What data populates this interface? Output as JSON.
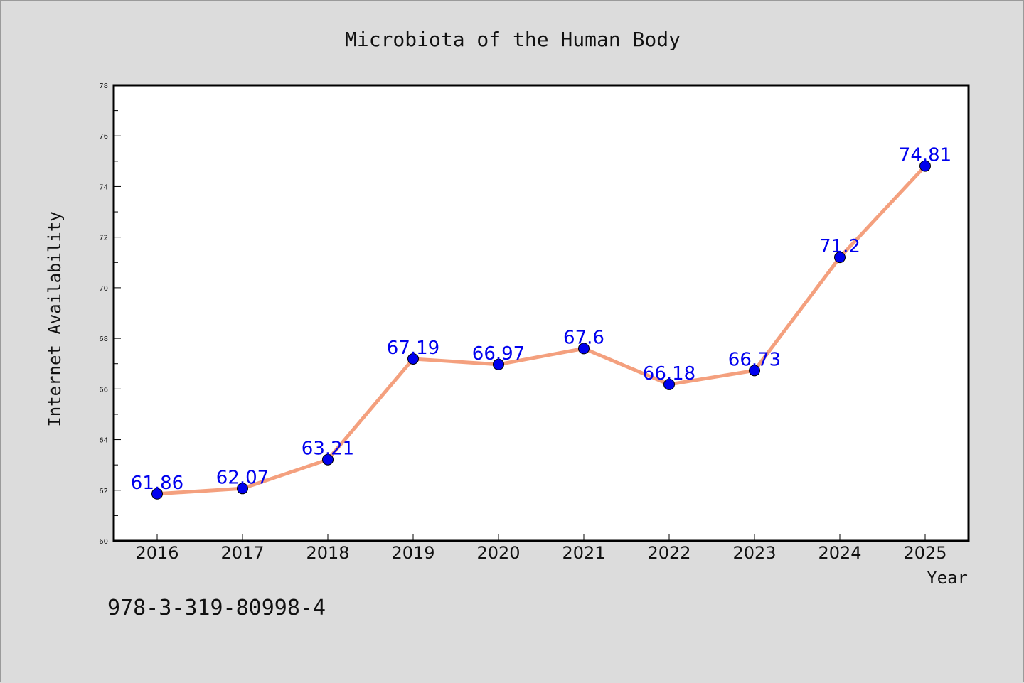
{
  "chart_data": {
    "type": "line",
    "title": "Microbiota of the Human Body",
    "xlabel": "Year",
    "ylabel": "Internet Availability",
    "categories": [
      "2016",
      "2017",
      "2018",
      "2019",
      "2020",
      "2021",
      "2022",
      "2023",
      "2024",
      "2025"
    ],
    "series": [
      {
        "values": [
          61.86,
          62.07,
          63.21,
          67.19,
          66.97,
          67.6,
          66.18,
          66.73,
          71.2,
          74.81
        ],
        "labels": [
          "61.86",
          "62.07",
          "63.21",
          "67.19",
          "66.97",
          "67.6",
          "66.18",
          "66.73",
          "71.2",
          "74.81"
        ],
        "line_color": "#f4a07e",
        "marker_color": "#0000ee"
      }
    ],
    "ylim": [
      60,
      78
    ],
    "yticks": [
      "60",
      "62",
      "64",
      "66",
      "68",
      "70",
      "72",
      "74",
      "76",
      "78"
    ],
    "grid": false,
    "legend": "none"
  },
  "caption": "978-3-319-80998-4",
  "colors": {
    "background": "#dcdcdc",
    "plot_background": "#ffffff"
  }
}
